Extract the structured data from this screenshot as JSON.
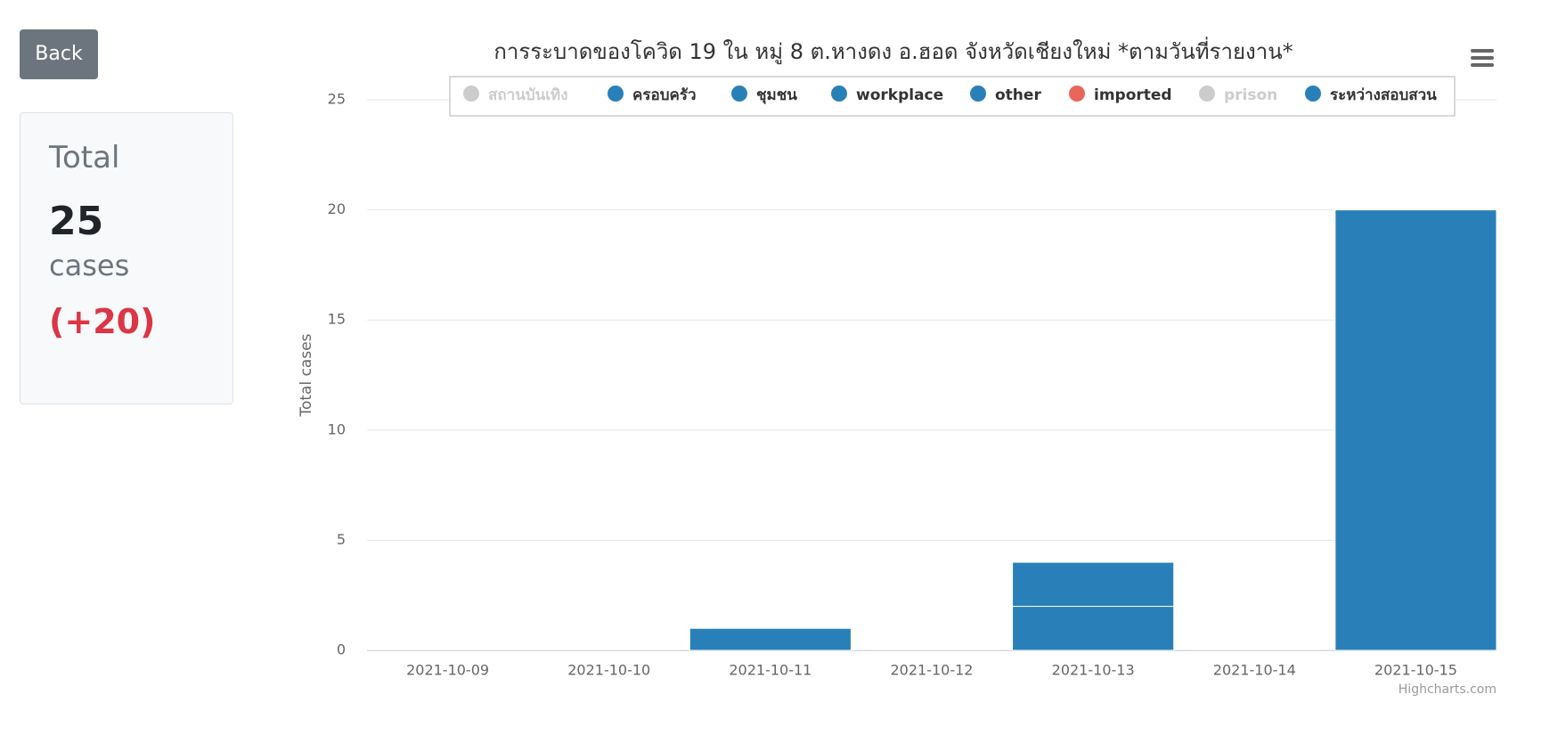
{
  "sidebar": {
    "back": "Back",
    "total_label": "Total",
    "total_value": "25",
    "unit": "cases",
    "change": "(+20)"
  },
  "chart_data": {
    "type": "bar",
    "stacked": true,
    "title": "การระบาดของโควิด 19 ใน หมู่ 8 ต.หางดง อ.ฮอด จังหวัดเชียงใหม่ *ตามวันที่รายงาน*",
    "y_label": "Total cases",
    "credits": "Highcharts.com",
    "categories": [
      "2021-10-09",
      "2021-10-10",
      "2021-10-11",
      "2021-10-12",
      "2021-10-13",
      "2021-10-14",
      "2021-10-15"
    ],
    "series": [
      {
        "name": "สถานบันเทิง",
        "color": "#cccccc",
        "visible": false,
        "values": [
          null,
          null,
          null,
          null,
          null,
          null,
          null
        ]
      },
      {
        "name": "ครอบครัว",
        "color": "#2980b9",
        "visible": true,
        "values": [
          0,
          0,
          0,
          0,
          2,
          0,
          0
        ]
      },
      {
        "name": "ชุมชน",
        "color": "#2980b9",
        "visible": true,
        "values": [
          0,
          0,
          0,
          0,
          0,
          0,
          0
        ]
      },
      {
        "name": "workplace",
        "color": "#2980b9",
        "visible": true,
        "values": [
          0,
          0,
          0,
          0,
          0,
          0,
          0
        ]
      },
      {
        "name": "other",
        "color": "#2980b9",
        "visible": true,
        "values": [
          0,
          0,
          0,
          0,
          0,
          0,
          0
        ]
      },
      {
        "name": "imported",
        "color": "#e9665a",
        "visible": true,
        "values": [
          0,
          0,
          0,
          0,
          0,
          0,
          0
        ]
      },
      {
        "name": "prison",
        "color": "#cccccc",
        "visible": false,
        "values": [
          null,
          null,
          null,
          null,
          null,
          null,
          null
        ]
      },
      {
        "name": "ระหว่างสอบสวน",
        "color": "#2980b9",
        "visible": true,
        "values": [
          0,
          0,
          1,
          0,
          2,
          0,
          20
        ]
      }
    ],
    "ylim": [
      0,
      25
    ],
    "yticks": [
      0,
      5,
      10,
      15,
      20,
      25
    ],
    "grid": true
  }
}
